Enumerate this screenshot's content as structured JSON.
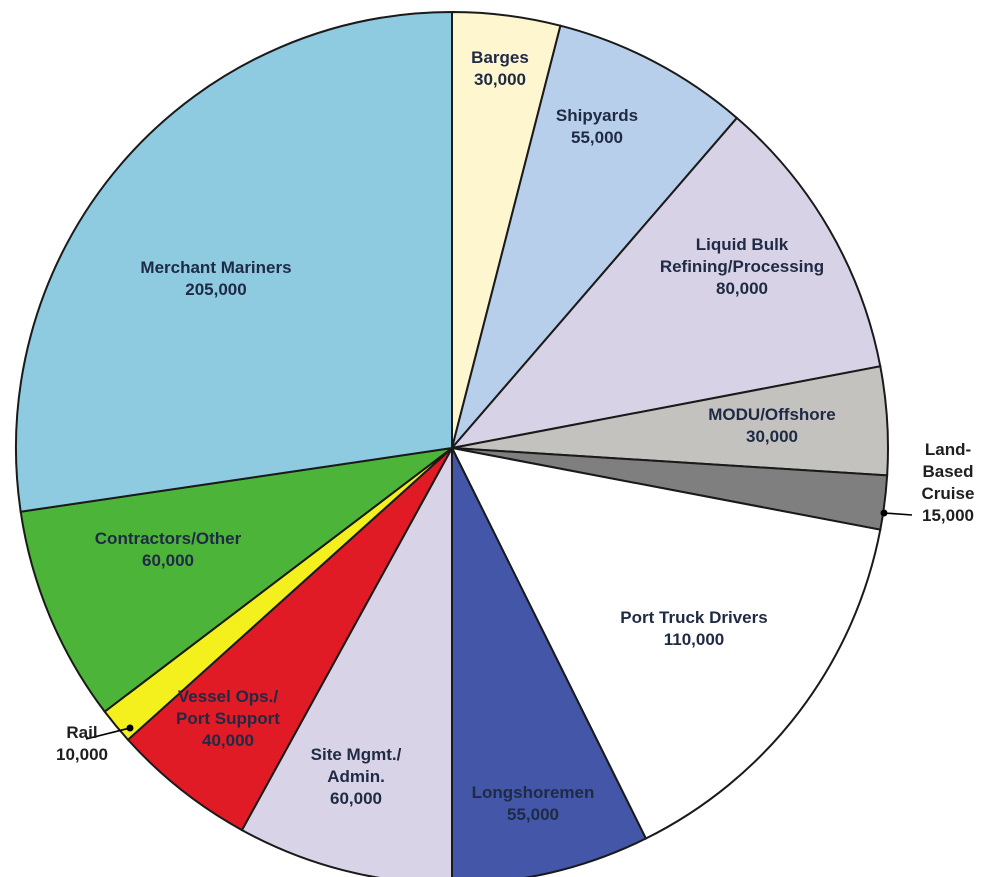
{
  "chart_data": {
    "type": "pie",
    "title": "",
    "start_angle_deg": 0,
    "direction": "clockwise",
    "slices": [
      {
        "label_lines": [
          "Barges",
          "30,000"
        ],
        "value": 30000,
        "color": "#FDF6CF"
      },
      {
        "label_lines": [
          "Shipyards",
          "55,000"
        ],
        "value": 55000,
        "color": "#B8CFEB"
      },
      {
        "label_lines": [
          "Liquid Bulk",
          "Refining/Processing",
          "80,000"
        ],
        "value": 80000,
        "color": "#D8D2E6"
      },
      {
        "label_lines": [
          "MODU/Offshore",
          "30,000"
        ],
        "value": 30000,
        "color": "#C4C2BF"
      },
      {
        "label_lines": [
          "Land-",
          "Based",
          "Cruise",
          "15,000"
        ],
        "value": 15000,
        "color": "#7F7F7F",
        "outside": true
      },
      {
        "label_lines": [
          "Port Truck Drivers",
          "110,000"
        ],
        "value": 110000,
        "color": "#FFFFFF"
      },
      {
        "label_lines": [
          "Longshoremen",
          "55,000"
        ],
        "value": 55000,
        "color": "#4356A8"
      },
      {
        "label_lines": [
          "Site Mgmt./",
          "Admin.",
          "60,000"
        ],
        "value": 60000,
        "color": "#D9D3E8"
      },
      {
        "label_lines": [
          "Vessel Ops./",
          "Port Support",
          "40,000"
        ],
        "value": 40000,
        "color": "#E11B26"
      },
      {
        "label_lines": [
          "Rail",
          "10,000"
        ],
        "value": 10000,
        "color": "#F4F01E",
        "outside": true
      },
      {
        "label_lines": [
          "Contractors/Other",
          "60,000"
        ],
        "value": 60000,
        "color": "#4DB43A"
      },
      {
        "label_lines": [
          "Merchant Mariners",
          "205,000"
        ],
        "value": 205000,
        "color": "#8FCBE0"
      }
    ]
  }
}
